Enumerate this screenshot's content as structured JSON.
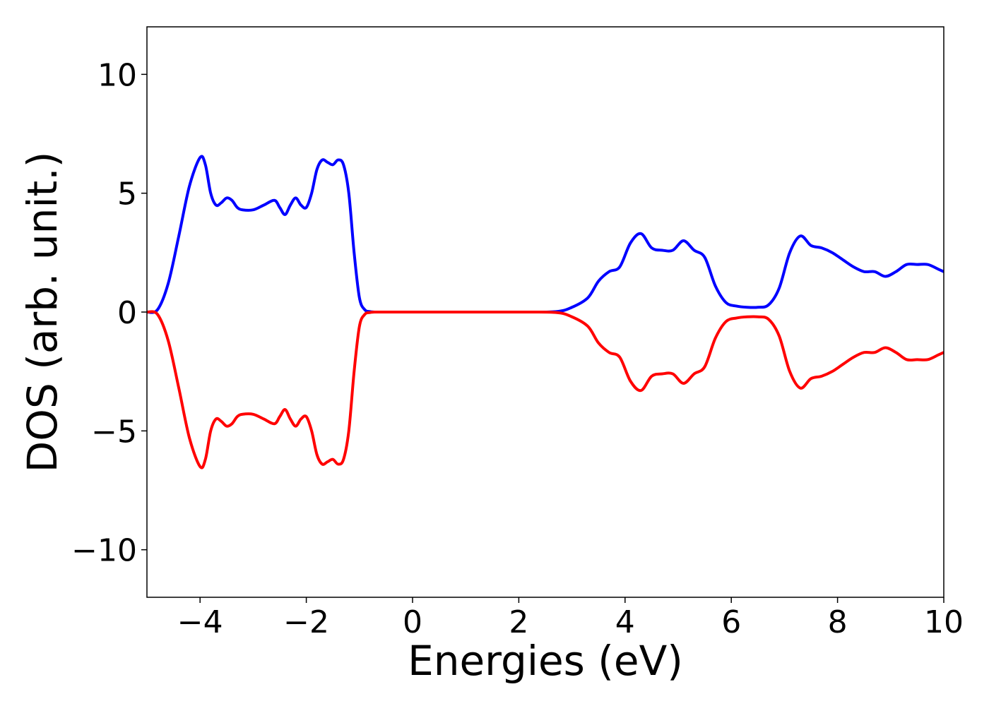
{
  "chart_data": {
    "type": "line",
    "title": "",
    "xlabel": "Energies (eV)",
    "ylabel": "DOS (arb. unit.)",
    "xlim": [
      -5,
      10
    ],
    "ylim": [
      -12,
      12
    ],
    "xticks": [
      -4,
      -2,
      0,
      2,
      4,
      6,
      8,
      10
    ],
    "xtick_labels": [
      "−4",
      "−2",
      "0",
      "2",
      "4",
      "6",
      "8",
      "10"
    ],
    "yticks": [
      10,
      5,
      0,
      -5,
      -10
    ],
    "ytick_labels": [
      "10",
      "5",
      "0",
      "−5",
      "−10"
    ],
    "grid": false,
    "legend": "none",
    "colors": {
      "up": "#0000ff",
      "down": "#ff0000"
    },
    "series": [
      {
        "color": "#0000ff",
        "x": [
          -5.0,
          -4.8,
          -4.6,
          -4.4,
          -4.2,
          -4.0,
          -3.9,
          -3.8,
          -3.7,
          -3.6,
          -3.5,
          -3.4,
          -3.3,
          -3.2,
          -3.0,
          -2.8,
          -2.6,
          -2.5,
          -2.4,
          -2.3,
          -2.2,
          -2.1,
          -2.0,
          -1.9,
          -1.8,
          -1.7,
          -1.6,
          -1.5,
          -1.4,
          -1.3,
          -1.2,
          -1.1,
          -1.0,
          -0.9,
          -0.8,
          -0.7,
          -0.6,
          -0.5,
          0.0,
          2.0,
          2.7,
          3.0,
          3.3,
          3.5,
          3.7,
          3.9,
          4.1,
          4.3,
          4.5,
          4.7,
          4.9,
          5.1,
          5.3,
          5.5,
          5.7,
          5.9,
          6.1,
          6.3,
          6.5,
          6.7,
          6.9,
          7.1,
          7.3,
          7.5,
          7.7,
          7.9,
          8.1,
          8.3,
          8.5,
          8.7,
          8.9,
          9.1,
          9.3,
          9.5,
          9.7,
          9.9,
          10.0
        ],
        "y": [
          0.0,
          0.1,
          1.2,
          3.2,
          5.3,
          6.5,
          6.2,
          5.0,
          4.5,
          4.6,
          4.8,
          4.7,
          4.4,
          4.3,
          4.3,
          4.5,
          4.7,
          4.4,
          4.1,
          4.5,
          4.8,
          4.5,
          4.4,
          5.0,
          6.0,
          6.4,
          6.3,
          6.2,
          6.4,
          6.2,
          5.0,
          2.5,
          0.6,
          0.1,
          0.02,
          0.0,
          0.0,
          0.0,
          0.0,
          0.0,
          0.02,
          0.2,
          0.6,
          1.3,
          1.7,
          1.9,
          2.9,
          3.3,
          2.7,
          2.6,
          2.6,
          3.0,
          2.6,
          2.3,
          1.1,
          0.4,
          0.25,
          0.2,
          0.2,
          0.3,
          1.0,
          2.5,
          3.2,
          2.8,
          2.7,
          2.5,
          2.2,
          1.9,
          1.7,
          1.7,
          1.5,
          1.7,
          2.0,
          2.0,
          2.0,
          1.8,
          1.7
        ]
      },
      {
        "color": "#ff0000",
        "x": [
          -5.0,
          -4.8,
          -4.6,
          -4.4,
          -4.2,
          -4.0,
          -3.9,
          -3.8,
          -3.7,
          -3.6,
          -3.5,
          -3.4,
          -3.3,
          -3.2,
          -3.0,
          -2.8,
          -2.6,
          -2.5,
          -2.4,
          -2.3,
          -2.2,
          -2.1,
          -2.0,
          -1.9,
          -1.8,
          -1.7,
          -1.6,
          -1.5,
          -1.4,
          -1.3,
          -1.2,
          -1.1,
          -1.0,
          -0.9,
          -0.8,
          -0.7,
          -0.6,
          -0.5,
          0.0,
          2.0,
          2.7,
          3.0,
          3.3,
          3.5,
          3.7,
          3.9,
          4.1,
          4.3,
          4.5,
          4.7,
          4.9,
          5.1,
          5.3,
          5.5,
          5.7,
          5.9,
          6.1,
          6.3,
          6.5,
          6.7,
          6.9,
          7.1,
          7.3,
          7.5,
          7.7,
          7.9,
          8.1,
          8.3,
          8.5,
          8.7,
          8.9,
          9.1,
          9.3,
          9.5,
          9.7,
          9.9,
          10.0
        ],
        "y": [
          0.0,
          -0.1,
          -1.2,
          -3.2,
          -5.3,
          -6.5,
          -6.2,
          -5.0,
          -4.5,
          -4.6,
          -4.8,
          -4.7,
          -4.4,
          -4.3,
          -4.3,
          -4.5,
          -4.7,
          -4.4,
          -4.1,
          -4.5,
          -4.8,
          -4.5,
          -4.4,
          -5.0,
          -6.0,
          -6.4,
          -6.3,
          -6.2,
          -6.4,
          -6.2,
          -5.0,
          -2.5,
          -0.6,
          -0.1,
          -0.02,
          0.0,
          0.0,
          0.0,
          0.0,
          0.0,
          -0.02,
          -0.2,
          -0.6,
          -1.3,
          -1.7,
          -1.9,
          -2.9,
          -3.3,
          -2.7,
          -2.6,
          -2.6,
          -3.0,
          -2.6,
          -2.3,
          -1.1,
          -0.4,
          -0.25,
          -0.2,
          -0.2,
          -0.3,
          -1.0,
          -2.5,
          -3.2,
          -2.8,
          -2.7,
          -2.5,
          -2.2,
          -1.9,
          -1.7,
          -1.7,
          -1.5,
          -1.7,
          -2.0,
          -2.0,
          -2.0,
          -1.8,
          -1.7
        ]
      }
    ]
  }
}
